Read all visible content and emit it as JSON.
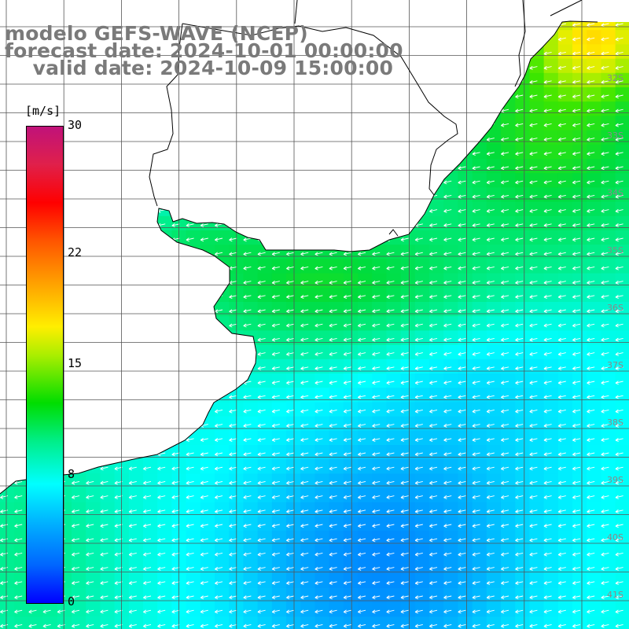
{
  "title": {
    "line1": "modelo GEFS-WAVE (NCEP)",
    "line2": "forecast date: 2024-10-01 00:00:00",
    "line3": "    valid date: 2024-10-09 15:00:00"
  },
  "colorbar": {
    "units": "[m/s]",
    "ticks": [
      {
        "label": "30",
        "value": 30
      },
      {
        "label": "22",
        "value": 22
      },
      {
        "label": "15",
        "value": 15
      },
      {
        "label": "8",
        "value": 8
      },
      {
        "label": "0",
        "value": 0
      }
    ],
    "min": 0,
    "max": 30
  },
  "lat_labels": [
    "32S",
    "33S",
    "34S",
    "35S",
    "36S",
    "37S",
    "38S",
    "39S",
    "40S",
    "41S"
  ],
  "colors": {
    "land": "#ffffff",
    "grid": "#555555",
    "coast": "#000000",
    "arrows": "#ffffff",
    "title": "#7a7a7a"
  }
}
